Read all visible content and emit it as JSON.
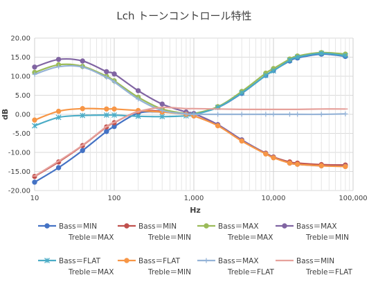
{
  "chart_data": {
    "type": "line",
    "title": "Lch トーンコントロール特性",
    "xlabel": "Hz",
    "ylabel": "dB",
    "x_scale": "log",
    "xlim": [
      10,
      100000
    ],
    "ylim": [
      -20,
      20
    ],
    "grid": true,
    "legend_position": "bottom",
    "x_ticks": [
      {
        "value": 10,
        "label": "10"
      },
      {
        "value": 100,
        "label": "100"
      },
      {
        "value": 1000,
        "label": "1,000"
      },
      {
        "value": 10000,
        "label": "10,000"
      },
      {
        "value": 100000,
        "label": "100,000"
      }
    ],
    "y_ticks": [
      {
        "value": 20,
        "label": "20.00"
      },
      {
        "value": 15,
        "label": "15.00"
      },
      {
        "value": 10,
        "label": "10.00"
      },
      {
        "value": 5,
        "label": "5.00"
      },
      {
        "value": 0,
        "label": "0.00"
      },
      {
        "value": -5,
        "label": "-5.00"
      },
      {
        "value": -10,
        "label": "-10.00"
      },
      {
        "value": -15,
        "label": "-15.00"
      },
      {
        "value": -20,
        "label": "-20.00"
      }
    ],
    "x": [
      10,
      20,
      40,
      80,
      100,
      200,
      400,
      800,
      1000,
      2000,
      4000,
      8000,
      10000,
      16000,
      20000,
      40000,
      80000
    ],
    "series": [
      {
        "name": "Bass＝MIN",
        "name2": "Treble＝MAX",
        "color": "#4472C4",
        "marker": "circle",
        "values": [
          -17.8,
          -14.0,
          -9.5,
          -4.5,
          -3.2,
          0.3,
          0.6,
          0.1,
          0.1,
          1.8,
          5.5,
          10.2,
          11.5,
          14.0,
          14.8,
          15.8,
          15.2
        ]
      },
      {
        "name": "Bass＝MIN",
        "name2": "Treble＝MIN",
        "color": "#C0504D",
        "marker": "circle",
        "values": [
          -16.3,
          -12.5,
          -8.2,
          -3.3,
          -2.2,
          0.7,
          0.8,
          0.0,
          -0.4,
          -2.9,
          -6.8,
          -10.2,
          -11.2,
          -12.5,
          -12.8,
          -13.2,
          -13.3
        ]
      },
      {
        "name": "Bass＝MAX",
        "name2": "Treble＝MAX",
        "color": "#9BBB59",
        "marker": "circle",
        "values": [
          11.0,
          13.0,
          12.6,
          10.0,
          8.8,
          4.5,
          1.4,
          0.2,
          0.2,
          2.0,
          6.0,
          10.8,
          12.0,
          14.5,
          15.3,
          16.2,
          15.8
        ]
      },
      {
        "name": "Bass＝MAX",
        "name2": "Treble＝MIN",
        "color": "#8064A2",
        "marker": "circle",
        "values": [
          12.4,
          14.4,
          14.0,
          11.2,
          10.6,
          6.2,
          2.7,
          0.6,
          0.2,
          -2.7,
          -6.7,
          -10.3,
          -11.3,
          -12.8,
          -13.1,
          -13.5,
          -13.6
        ]
      },
      {
        "name": "Bass＝FLAT",
        "name2": "Treble＝MAX",
        "color": "#4BACC6",
        "marker": "star",
        "values": [
          -3.0,
          -0.8,
          -0.3,
          -0.2,
          -0.2,
          -0.5,
          -0.6,
          -0.4,
          -0.1,
          1.8,
          5.6,
          10.2,
          11.4,
          14.2,
          15.0,
          16.0,
          15.4
        ]
      },
      {
        "name": "Bass＝FLAT",
        "name2": "Treble＝MIN",
        "color": "#F79646",
        "marker": "circle",
        "values": [
          -1.5,
          0.8,
          1.5,
          1.4,
          1.4,
          1.0,
          0.6,
          0.0,
          -0.4,
          -3.0,
          -7.0,
          -10.4,
          -11.4,
          -12.8,
          -13.1,
          -13.5,
          -13.7
        ]
      },
      {
        "name": "Bass＝MAX",
        "name2": "Treble＝FLAT",
        "color": "#95B3D7",
        "marker": "plus",
        "values": [
          10.5,
          12.5,
          12.4,
          9.7,
          8.5,
          4.0,
          1.0,
          0.1,
          0.0,
          0.0,
          0.0,
          0.0,
          0.0,
          0.0,
          0.0,
          0.0,
          0.1
        ]
      },
      {
        "name": "Bass＝MIN",
        "name2": "Treble＝FLAT",
        "color": "#E6A19C",
        "marker": "dash",
        "values": [
          -16.2,
          -12.3,
          -8.1,
          -3.2,
          -2.1,
          0.7,
          1.8,
          1.5,
          1.5,
          1.4,
          1.3,
          1.3,
          1.3,
          1.3,
          1.3,
          1.4,
          1.4
        ]
      }
    ]
  }
}
